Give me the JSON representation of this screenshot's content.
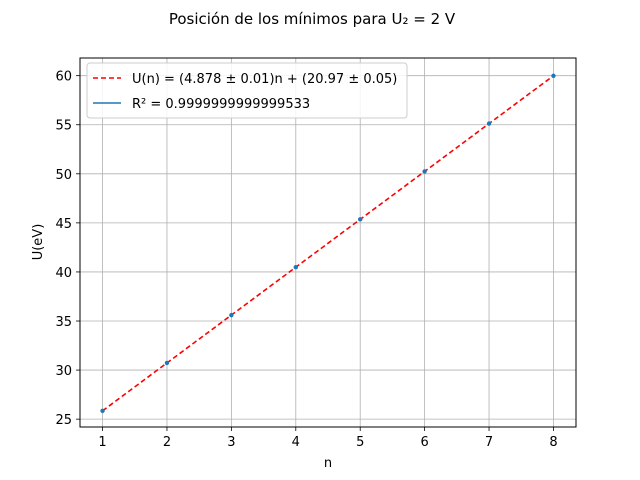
{
  "chart_data": {
    "type": "scatter",
    "title": "Posición de los mínimos para U₂ = 2 V",
    "xlabel": "n",
    "ylabel": "U(eV)",
    "xlim": [
      0.65,
      8.35
    ],
    "ylim": [
      24.2,
      61.8
    ],
    "xticks": [
      1,
      2,
      3,
      4,
      5,
      6,
      7,
      8
    ],
    "yticks": [
      25,
      30,
      35,
      40,
      45,
      50,
      55,
      60
    ],
    "grid": true,
    "legend_position": "top-left",
    "series": [
      {
        "name": "R² = 0.9999999999999533",
        "kind": "points",
        "color": "#1f77b4",
        "x": [
          1,
          2,
          3,
          4,
          5,
          6,
          7,
          8
        ],
        "y": [
          25.85,
          30.73,
          35.6,
          40.48,
          45.36,
          50.24,
          55.12,
          59.99
        ]
      },
      {
        "name": "U(n) = (4.878 ± 0.01)n + (20.97 ± 0.05)",
        "kind": "fit-line",
        "color": "#ff0000",
        "slope": 4.878,
        "intercept": 20.97,
        "x": [
          1,
          8
        ]
      }
    ]
  }
}
